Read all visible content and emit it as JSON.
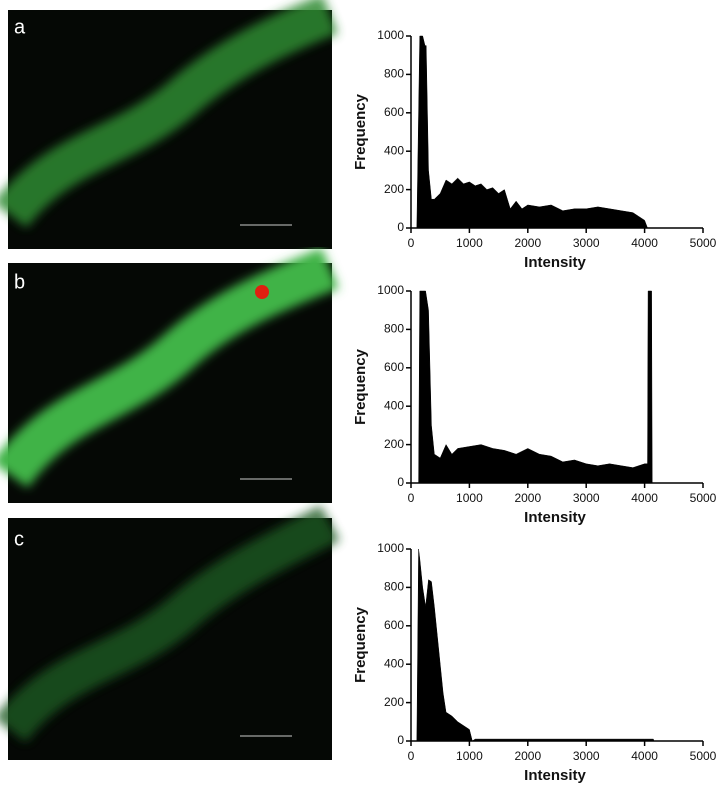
{
  "panel_labels": [
    "a",
    "b",
    "c"
  ],
  "chart_data": [
    {
      "type": "area",
      "x_label": "Intensity",
      "y_label": "Frequency",
      "color": "#000000",
      "x": [
        100,
        150,
        160,
        200,
        240,
        260,
        300,
        350,
        400,
        500,
        600,
        700,
        800,
        900,
        1000,
        1100,
        1200,
        1300,
        1400,
        1500,
        1600,
        1700,
        1800,
        1900,
        2000,
        2200,
        2400,
        2600,
        2800,
        3000,
        3200,
        3400,
        3600,
        3800,
        3900,
        4000,
        4050,
        4100
      ],
      "values": [
        0,
        1000,
        1000,
        1000,
        950,
        950,
        300,
        150,
        150,
        180,
        250,
        230,
        260,
        230,
        240,
        220,
        230,
        200,
        210,
        180,
        200,
        100,
        140,
        100,
        120,
        110,
        120,
        90,
        100,
        100,
        110,
        100,
        90,
        80,
        60,
        40,
        0,
        0
      ],
      "xlim": [
        0,
        5000
      ],
      "ylim": [
        0,
        1000
      ],
      "xticks": [
        0,
        1000,
        2000,
        3000,
        4000,
        5000
      ],
      "yticks": [
        0,
        200,
        400,
        600,
        800,
        1000
      ]
    },
    {
      "type": "area",
      "x_label": "Intensity",
      "y_label": "Frequency",
      "color": "#000000",
      "x": [
        130,
        150,
        200,
        250,
        300,
        350,
        400,
        500,
        600,
        700,
        800,
        1000,
        1200,
        1400,
        1600,
        1800,
        2000,
        2200,
        2400,
        2600,
        2800,
        3000,
        3200,
        3400,
        3600,
        3800,
        4000,
        4050,
        4060,
        4120,
        4130
      ],
      "values": [
        0,
        1000,
        1000,
        1000,
        900,
        300,
        150,
        130,
        200,
        150,
        180,
        190,
        200,
        180,
        170,
        150,
        180,
        150,
        140,
        110,
        120,
        100,
        90,
        100,
        90,
        80,
        100,
        100,
        1000,
        1000,
        0
      ],
      "xlim": [
        0,
        5000
      ],
      "ylim": [
        0,
        1000
      ],
      "xticks": [
        0,
        1000,
        2000,
        3000,
        4000,
        5000
      ],
      "yticks": [
        0,
        200,
        400,
        600,
        800,
        1000
      ]
    },
    {
      "type": "area",
      "x_label": "Intensity",
      "y_label": "Frequency",
      "color": "#000000",
      "x": [
        100,
        130,
        150,
        200,
        250,
        300,
        350,
        400,
        450,
        500,
        550,
        600,
        700,
        800,
        900,
        1000,
        1050,
        1100,
        2000,
        3000,
        4000,
        4150,
        4160
      ],
      "values": [
        0,
        1000,
        950,
        800,
        700,
        840,
        830,
        700,
        550,
        400,
        250,
        150,
        130,
        100,
        80,
        60,
        0,
        10,
        10,
        10,
        10,
        10,
        0
      ],
      "xlim": [
        0,
        5000
      ],
      "ylim": [
        0,
        1000
      ],
      "xticks": [
        0,
        1000,
        2000,
        3000,
        4000,
        5000
      ],
      "yticks": [
        0,
        200,
        400,
        600,
        800,
        1000
      ]
    }
  ]
}
